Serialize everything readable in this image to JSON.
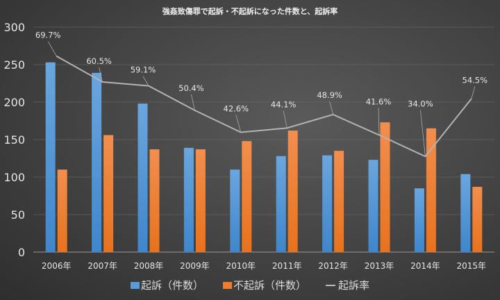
{
  "chart_data": {
    "type": "bar",
    "title": "強姦致傷罪で起訴・不起訴になった件数と、起訴率",
    "categories": [
      "2006年",
      "2007年",
      "2008年",
      "2009年",
      "2010年",
      "2011年",
      "2012年",
      "2013年",
      "2014年",
      "2015年"
    ],
    "series": [
      {
        "name": "起訴（件数）",
        "type": "bar",
        "color": "#5b9bd5",
        "values": [
          253,
          239,
          198,
          139,
          110,
          128,
          129,
          123,
          85,
          104
        ]
      },
      {
        "name": "不起訴（件数）",
        "type": "bar",
        "color": "#ed7d31",
        "values": [
          110,
          156,
          137,
          137,
          148,
          162,
          135,
          173,
          165,
          87
        ]
      },
      {
        "name": "起訴率",
        "type": "line",
        "axis": "secondary",
        "color": "#b4b4b4",
        "values": [
          69.7,
          60.5,
          59.1,
          50.4,
          42.6,
          44.1,
          48.9,
          41.6,
          34.0,
          54.5
        ],
        "labels": [
          "69.7%",
          "60.5%",
          "59.1%",
          "50.4%",
          "42.6%",
          "44.1%",
          "48.9%",
          "41.6%",
          "34.0%",
          "54.5%"
        ]
      }
    ],
    "yticks": [
      "0",
      "50",
      "100",
      "150",
      "200",
      "250",
      "300"
    ],
    "ylim": [
      0,
      300
    ],
    "y2lim": [
      0,
      80
    ],
    "grid": true,
    "legend": "bottom"
  }
}
